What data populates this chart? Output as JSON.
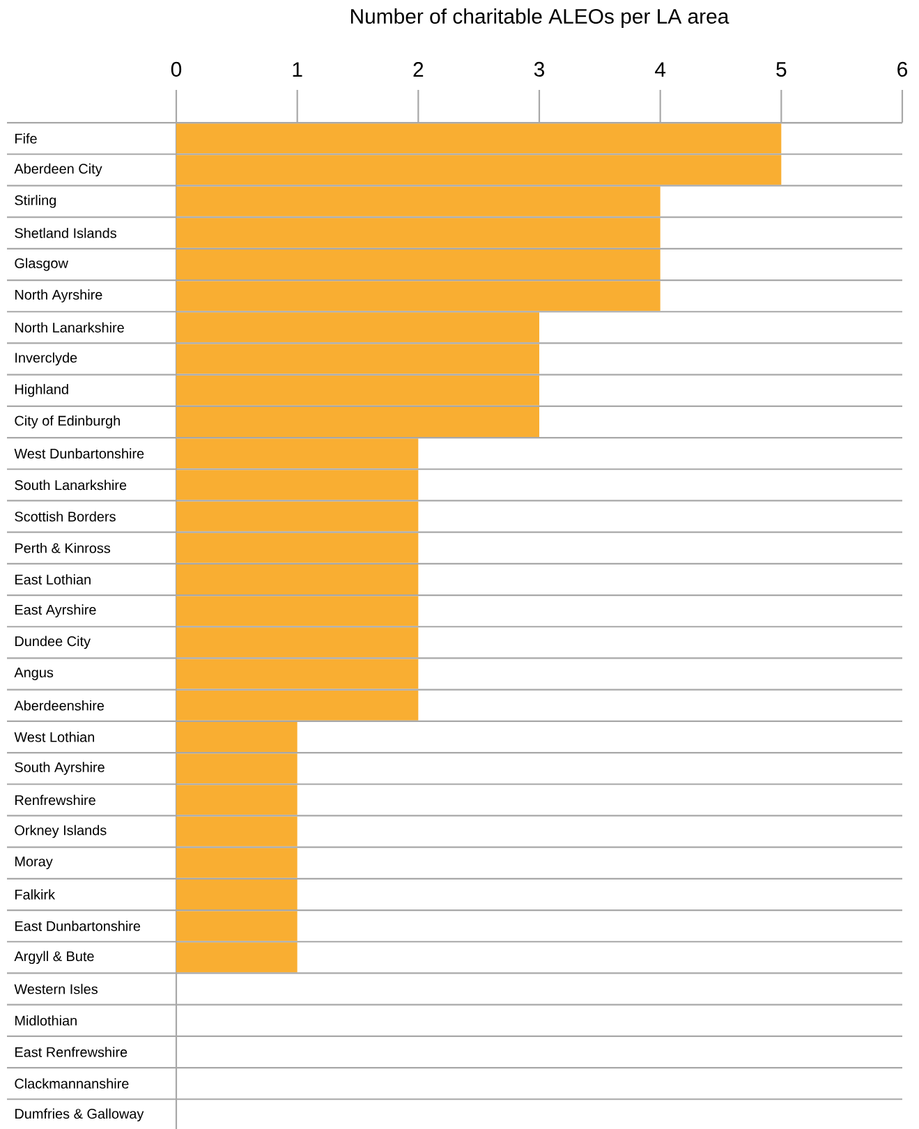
{
  "chart_data": {
    "type": "bar",
    "orientation": "horizontal",
    "xlabel": "Number of charitable ALEOs per LA area",
    "categories": [
      "Fife",
      "Aberdeen City",
      "Stirling",
      "Shetland Islands",
      "Glasgow",
      "North Ayrshire",
      "North Lanarkshire",
      "Inverclyde",
      "Highland",
      "City of Edinburgh",
      "West Dunbartonshire",
      "South Lanarkshire",
      "Scottish Borders",
      "Perth & Kinross",
      "East Lothian",
      "East Ayrshire",
      "Dundee City",
      "Angus",
      "Aberdeenshire",
      "West Lothian",
      "South Ayrshire",
      "Renfrewshire",
      "Orkney Islands",
      "Moray",
      "Falkirk",
      "East Dunbartonshire",
      "Argyll & Bute",
      "Western Isles",
      "Midlothian",
      "East Renfrewshire",
      "Clackmannanshire",
      "Dumfries & Galloway"
    ],
    "values": [
      5,
      5,
      4,
      4,
      4,
      4,
      3,
      3,
      3,
      3,
      2,
      2,
      2,
      2,
      2,
      2,
      2,
      2,
      2,
      1,
      1,
      1,
      1,
      1,
      1,
      1,
      1,
      0,
      0,
      0,
      0,
      0
    ],
    "color": "#f9ae32",
    "xlim": [
      0,
      6
    ],
    "xticks": [
      0,
      1,
      2,
      3,
      4,
      5,
      6
    ],
    "grid": "y"
  }
}
